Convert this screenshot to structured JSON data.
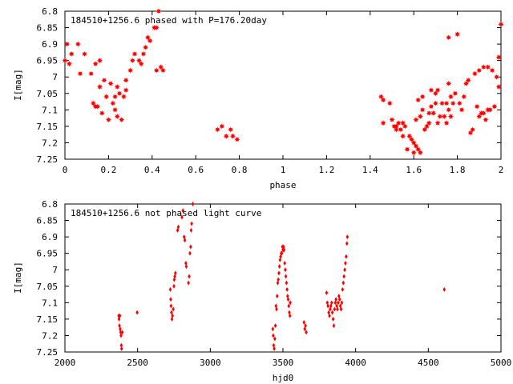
{
  "chart_data": [
    {
      "type": "scatter",
      "title": "184510+1256.6 phased with P=176.20day",
      "xlabel": "phase",
      "ylabel": "I[mag]",
      "xlim": [
        0,
        2
      ],
      "ylim": [
        7.25,
        6.8
      ],
      "y_inverted": true,
      "xticks": [
        "0",
        "0.2",
        "0.4",
        "0.6",
        "0.8",
        "1",
        "1.2",
        "1.4",
        "1.6",
        "1.8",
        "2"
      ],
      "yticks": [
        "6.8",
        "6.85",
        "6.9",
        "6.95",
        "7",
        "7.05",
        "7.1",
        "7.15",
        "7.2",
        "7.25"
      ],
      "marker_color": "#ff0000",
      "marker": "filled-star",
      "points": [
        [
          0.0,
          6.95
        ],
        [
          0.01,
          6.9
        ],
        [
          0.02,
          6.96
        ],
        [
          0.03,
          6.93
        ],
        [
          0.06,
          6.9
        ],
        [
          0.07,
          6.99
        ],
        [
          0.09,
          6.93
        ],
        [
          0.12,
          6.99
        ],
        [
          0.13,
          7.08
        ],
        [
          0.14,
          6.96
        ],
        [
          0.14,
          7.09
        ],
        [
          0.15,
          7.09
        ],
        [
          0.16,
          6.95
        ],
        [
          0.16,
          7.03
        ],
        [
          0.17,
          7.11
        ],
        [
          0.18,
          7.01
        ],
        [
          0.19,
          7.06
        ],
        [
          0.2,
          7.13
        ],
        [
          0.21,
          7.02
        ],
        [
          0.22,
          7.08
        ],
        [
          0.23,
          7.1
        ],
        [
          0.23,
          7.06
        ],
        [
          0.24,
          7.12
        ],
        [
          0.24,
          7.03
        ],
        [
          0.25,
          7.05
        ],
        [
          0.26,
          7.13
        ],
        [
          0.27,
          7.06
        ],
        [
          0.28,
          7.01
        ],
        [
          0.28,
          7.04
        ],
        [
          0.3,
          6.98
        ],
        [
          0.31,
          6.95
        ],
        [
          0.32,
          6.93
        ],
        [
          0.34,
          6.95
        ],
        [
          0.35,
          6.96
        ],
        [
          0.36,
          6.93
        ],
        [
          0.37,
          6.91
        ],
        [
          0.38,
          6.88
        ],
        [
          0.39,
          6.89
        ],
        [
          0.41,
          6.85
        ],
        [
          0.42,
          6.85
        ],
        [
          0.42,
          6.98
        ],
        [
          0.43,
          6.8
        ],
        [
          0.44,
          6.97
        ],
        [
          0.45,
          6.98
        ],
        [
          0.7,
          7.16
        ],
        [
          0.72,
          7.15
        ],
        [
          0.74,
          7.18
        ],
        [
          0.76,
          7.16
        ],
        [
          0.77,
          7.18
        ],
        [
          0.79,
          7.19
        ],
        [
          1.45,
          7.06
        ],
        [
          1.46,
          7.07
        ],
        [
          1.46,
          7.14
        ],
        [
          1.49,
          7.08
        ],
        [
          1.5,
          7.13
        ],
        [
          1.51,
          7.15
        ],
        [
          1.52,
          7.16
        ],
        [
          1.52,
          7.15
        ],
        [
          1.53,
          7.14
        ],
        [
          1.54,
          7.16
        ],
        [
          1.55,
          7.14
        ],
        [
          1.55,
          7.18
        ],
        [
          1.56,
          7.15
        ],
        [
          1.57,
          7.22
        ],
        [
          1.58,
          7.18
        ],
        [
          1.59,
          7.19
        ],
        [
          1.6,
          7.2
        ],
        [
          1.6,
          7.23
        ],
        [
          1.61,
          7.13
        ],
        [
          1.61,
          7.21
        ],
        [
          1.62,
          7.07
        ],
        [
          1.62,
          7.22
        ],
        [
          1.63,
          7.23
        ],
        [
          1.63,
          7.12
        ],
        [
          1.64,
          7.1
        ],
        [
          1.64,
          7.06
        ],
        [
          1.65,
          7.16
        ],
        [
          1.66,
          7.15
        ],
        [
          1.67,
          7.11
        ],
        [
          1.67,
          7.14
        ],
        [
          1.68,
          7.04
        ],
        [
          1.68,
          7.09
        ],
        [
          1.69,
          7.11
        ],
        [
          1.7,
          7.05
        ],
        [
          1.7,
          7.08
        ],
        [
          1.71,
          7.14
        ],
        [
          1.71,
          7.04
        ],
        [
          1.72,
          7.12
        ],
        [
          1.73,
          7.08
        ],
        [
          1.74,
          7.12
        ],
        [
          1.75,
          7.14
        ],
        [
          1.75,
          7.08
        ],
        [
          1.76,
          7.1
        ],
        [
          1.76,
          7.02
        ],
        [
          1.77,
          7.06
        ],
        [
          1.77,
          7.12
        ],
        [
          1.78,
          7.08
        ],
        [
          1.79,
          7.05
        ],
        [
          1.8,
          6.87
        ],
        [
          1.81,
          7.08
        ],
        [
          1.82,
          7.1
        ],
        [
          1.83,
          7.06
        ],
        [
          1.84,
          7.02
        ],
        [
          1.85,
          7.01
        ],
        [
          1.86,
          7.17
        ],
        [
          1.87,
          7.16
        ],
        [
          1.88,
          6.99
        ],
        [
          1.89,
          7.09
        ],
        [
          1.9,
          7.12
        ],
        [
          1.9,
          6.98
        ],
        [
          1.91,
          7.11
        ],
        [
          1.92,
          7.11
        ],
        [
          1.92,
          6.97
        ],
        [
          1.93,
          7.13
        ],
        [
          1.94,
          6.97
        ],
        [
          1.94,
          7.1
        ],
        [
          1.95,
          7.1
        ],
        [
          1.96,
          6.98
        ],
        [
          1.97,
          7.09
        ],
        [
          1.98,
          7.0
        ],
        [
          1.99,
          6.94
        ],
        [
          1.99,
          7.03
        ],
        [
          2.0,
          6.84
        ],
        [
          1.76,
          6.88
        ]
      ]
    },
    {
      "type": "scatter",
      "title": "184510+1256.6 not phased light curve",
      "xlabel": "hjd0",
      "ylabel": "I[mag]",
      "xlim": [
        2000,
        5000
      ],
      "ylim": [
        7.25,
        6.8
      ],
      "y_inverted": true,
      "xticks": [
        "2000",
        "2500",
        "3000",
        "3500",
        "4000",
        "4500",
        "5000"
      ],
      "yticks": [
        "6.8",
        "6.85",
        "6.9",
        "6.95",
        "7",
        "7.05",
        "7.1",
        "7.15",
        "7.2",
        "7.25"
      ],
      "marker_color": "#ff0000",
      "marker": "small-diamond",
      "points": [
        [
          2370,
          7.14
        ],
        [
          2372,
          7.15
        ],
        [
          2375,
          7.17
        ],
        [
          2378,
          7.14
        ],
        [
          2380,
          7.18
        ],
        [
          2383,
          7.19
        ],
        [
          2386,
          7.2
        ],
        [
          2388,
          7.23
        ],
        [
          2390,
          7.24
        ],
        [
          2395,
          7.19
        ],
        [
          2497,
          7.13
        ],
        [
          2725,
          7.06
        ],
        [
          2728,
          7.09
        ],
        [
          2730,
          7.11
        ],
        [
          2733,
          7.13
        ],
        [
          2736,
          7.15
        ],
        [
          2740,
          7.14
        ],
        [
          2745,
          7.12
        ],
        [
          2750,
          7.05
        ],
        [
          2752,
          7.03
        ],
        [
          2756,
          7.02
        ],
        [
          2760,
          7.01
        ],
        [
          2775,
          6.88
        ],
        [
          2780,
          6.87
        ],
        [
          2805,
          6.84
        ],
        [
          2812,
          6.82
        ],
        [
          2820,
          6.9
        ],
        [
          2825,
          6.91
        ],
        [
          2832,
          6.98
        ],
        [
          2835,
          6.99
        ],
        [
          2850,
          7.04
        ],
        [
          2855,
          7.02
        ],
        [
          2860,
          6.95
        ],
        [
          2865,
          6.93
        ],
        [
          2868,
          6.88
        ],
        [
          2872,
          6.86
        ],
        [
          2880,
          6.8
        ],
        [
          3430,
          7.18
        ],
        [
          3433,
          7.2
        ],
        [
          3436,
          7.23
        ],
        [
          3440,
          7.24
        ],
        [
          3444,
          7.21
        ],
        [
          3448,
          7.17
        ],
        [
          3452,
          7.11
        ],
        [
          3456,
          7.12
        ],
        [
          3460,
          7.08
        ],
        [
          3464,
          7.04
        ],
        [
          3468,
          7.03
        ],
        [
          3472,
          7.01
        ],
        [
          3476,
          6.99
        ],
        [
          3480,
          6.97
        ],
        [
          3484,
          6.96
        ],
        [
          3488,
          6.95
        ],
        [
          3492,
          6.95
        ],
        [
          3496,
          6.93
        ],
        [
          3500,
          6.94
        ],
        [
          3504,
          6.93
        ],
        [
          3508,
          6.94
        ],
        [
          3512,
          6.98
        ],
        [
          3516,
          7.0
        ],
        [
          3520,
          7.02
        ],
        [
          3524,
          7.04
        ],
        [
          3528,
          7.06
        ],
        [
          3532,
          7.08
        ],
        [
          3536,
          7.09
        ],
        [
          3540,
          7.11
        ],
        [
          3544,
          7.13
        ],
        [
          3548,
          7.14
        ],
        [
          3550,
          7.1
        ],
        [
          3645,
          7.16
        ],
        [
          3650,
          7.18
        ],
        [
          3655,
          7.17
        ],
        [
          3660,
          7.19
        ],
        [
          3800,
          7.07
        ],
        [
          3805,
          7.1
        ],
        [
          3810,
          7.11
        ],
        [
          3815,
          7.13
        ],
        [
          3820,
          7.14
        ],
        [
          3825,
          7.12
        ],
        [
          3830,
          7.11
        ],
        [
          3835,
          7.1
        ],
        [
          3840,
          7.13
        ],
        [
          3845,
          7.15
        ],
        [
          3850,
          7.17
        ],
        [
          3855,
          7.12
        ],
        [
          3860,
          7.1
        ],
        [
          3865,
          7.09
        ],
        [
          3870,
          7.11
        ],
        [
          3875,
          7.12
        ],
        [
          3880,
          7.1
        ],
        [
          3885,
          7.08
        ],
        [
          3890,
          7.09
        ],
        [
          3895,
          7.11
        ],
        [
          3900,
          7.12
        ],
        [
          3905,
          7.1
        ],
        [
          3910,
          7.06
        ],
        [
          3915,
          7.04
        ],
        [
          3920,
          7.02
        ],
        [
          3925,
          7.0
        ],
        [
          3930,
          6.98
        ],
        [
          3935,
          6.96
        ],
        [
          3940,
          6.92
        ],
        [
          3943,
          6.9
        ],
        [
          4610,
          7.06
        ]
      ]
    }
  ]
}
